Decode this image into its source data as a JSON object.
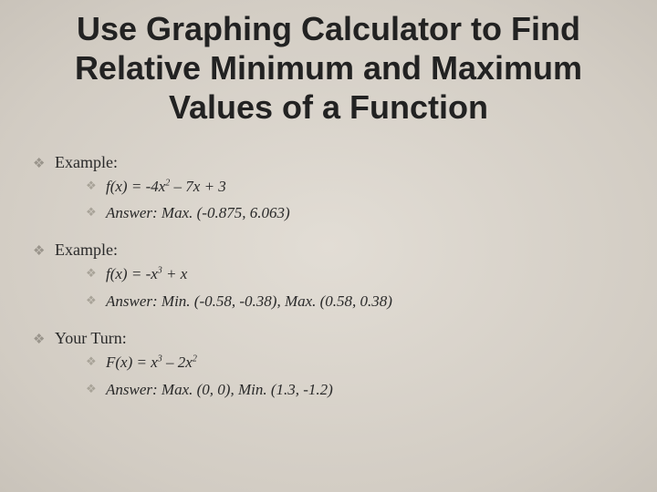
{
  "slide": {
    "background_color": "#d9d4cc",
    "title": "Use Graphing Calculator to Find Relative Minimum and Maximum Values of a Function",
    "title_fontsize": 36,
    "title_font": "Arial",
    "title_color": "#222222",
    "body_font": "Georgia",
    "body_color": "#2a2a2a",
    "bullet_glyph": "❖",
    "bullet_color_outer": "#9a958c",
    "bullet_color_inner": "#a8a398",
    "sections": [
      {
        "label": "Example:",
        "items": [
          {
            "prefix": "f(x) = -4x",
            "sup": "2",
            "suffix": " – 7x + 3"
          },
          {
            "prefix": "Answer: Max. (-0.875, 6.063)",
            "sup": "",
            "suffix": ""
          }
        ]
      },
      {
        "label": "Example:",
        "items": [
          {
            "prefix": "f(x) = -x",
            "sup": "3",
            "suffix": " + x"
          },
          {
            "prefix": "Answer: Min. (-0.58, -0.38), Max. (0.58, 0.38)",
            "sup": "",
            "suffix": ""
          }
        ]
      },
      {
        "label": "Your Turn:",
        "items": [
          {
            "prefix": "F(x) = x",
            "sup": "3",
            "suffix": " – 2x",
            "sup2": "2",
            "suffix2": ""
          },
          {
            "prefix": "Answer: Max. (0, 0), Min. (1.3, -1.2)",
            "sup": "",
            "suffix": ""
          }
        ]
      }
    ]
  }
}
